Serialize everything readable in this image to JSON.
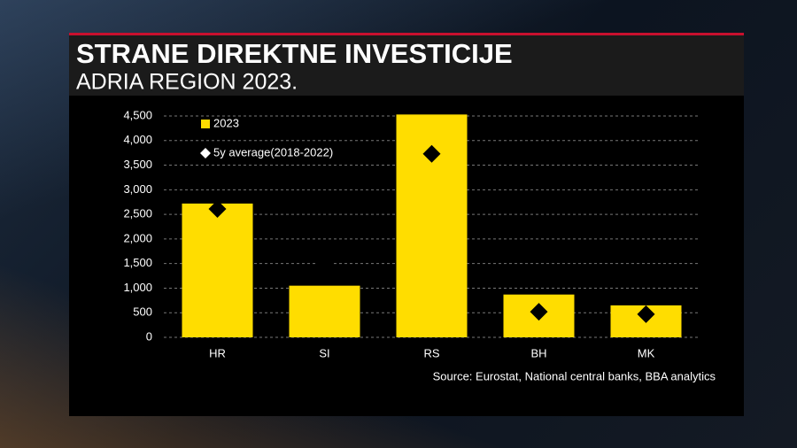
{
  "chart_data": {
    "type": "bar",
    "title": "STRANE DIREKTNE INVESTICIJE",
    "subtitle": "ADRIA REGION 2023.",
    "source": "Source: Eurostat, National central banks, BBA analytics",
    "categories": [
      "HR",
      "SI",
      "RS",
      "BH",
      "MK"
    ],
    "series": [
      {
        "name": "2023",
        "type": "bar",
        "color": "#ffdd00",
        "values": [
          2720,
          1050,
          4530,
          870,
          650
        ]
      },
      {
        "name": "5y average(2018-2022)",
        "type": "diamond",
        "color": "#000000",
        "values": [
          2610,
          1510,
          3730,
          520,
          470
        ]
      }
    ],
    "ylim": [
      0,
      4500
    ],
    "yticks": [
      0,
      500,
      {
        "value": 1000,
        "label": "1,000"
      },
      {
        "value": 1500,
        "label": "1,500"
      },
      {
        "value": 2000,
        "label": "2,000"
      },
      {
        "value": 2500,
        "label": "2,500"
      },
      {
        "value": 3000,
        "label": "3,000"
      },
      {
        "value": 3500,
        "label": "3,500"
      },
      {
        "value": 4000,
        "label": "4,000"
      },
      {
        "value": 4500,
        "label": "4,500"
      }
    ],
    "grid": true
  }
}
